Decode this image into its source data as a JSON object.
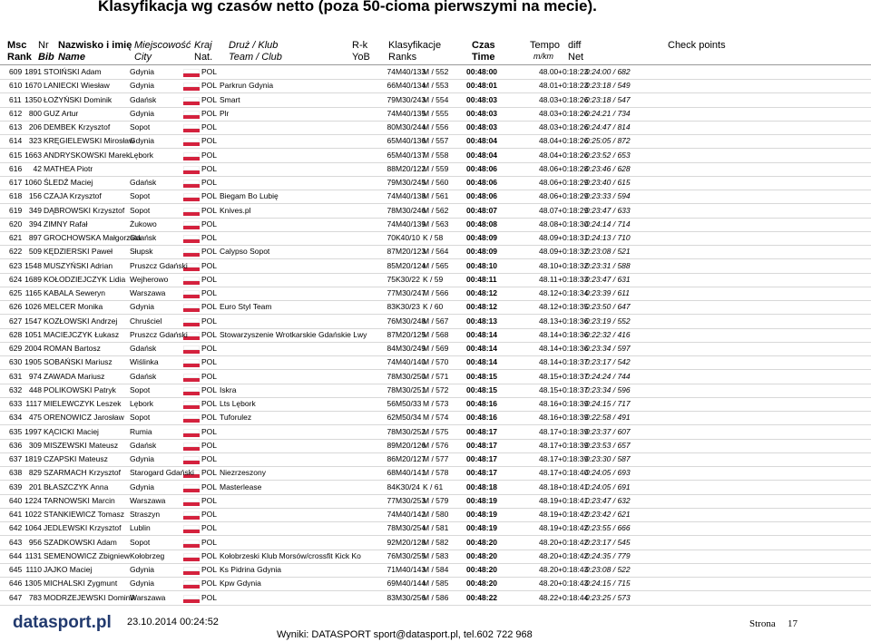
{
  "header": {
    "title": "Klasyfikacja wg czasów netto (poza 50-cioma pierwszymi na mecie)."
  },
  "table": {
    "columns": [
      [
        "Msc",
        "Rank"
      ],
      [
        "Nr",
        "Bib"
      ],
      [
        "Nazwisko i imię",
        "Name"
      ],
      [
        "Miejscowość",
        "City"
      ],
      [
        "Kraj",
        "Nat."
      ],
      [
        "Druż / Klub",
        "Team / Club"
      ],
      [
        "R-k",
        "YoB"
      ],
      [
        "Klasyfikacje",
        "Ranks"
      ],
      [
        "Czas",
        "Time"
      ],
      [
        "Tempo",
        "m/km"
      ],
      [
        "diff",
        "Net"
      ],
      [
        "Check points"
      ]
    ],
    "rows": [
      [
        "609",
        "1891",
        "STOIŃSKI Adam",
        "Gdynia",
        "POL",
        "",
        "74",
        "M40/133",
        "M / 552",
        "00:48:00",
        "48.00",
        "+0:18:23",
        "0:24:00 / 682"
      ],
      [
        "610",
        "1670",
        "LANIECKI Wiesław",
        "Gdynia",
        "POL",
        "Parkrun Gdynia",
        "66",
        "M40/134",
        "M / 553",
        "00:48:01",
        "48.01",
        "+0:18:23",
        "0:23:18 / 549"
      ],
      [
        "611",
        "1350",
        "ŁOŻYŃSKI Dominik",
        "Gdańsk",
        "POL",
        "Smart",
        "79",
        "M30/243",
        "M / 554",
        "00:48:03",
        "48.03",
        "+0:18:26",
        "0:23:18 / 547"
      ],
      [
        "612",
        "800",
        "GUZ Artur",
        "Gdynia",
        "POL",
        "Plr",
        "74",
        "M40/135",
        "M / 555",
        "00:48:03",
        "48.03",
        "+0:18:26",
        "0:24:21 / 734"
      ],
      [
        "613",
        "206",
        "DEMBEK Krzysztof",
        "Sopot",
        "POL",
        "",
        "80",
        "M30/244",
        "M / 556",
        "00:48:03",
        "48.03",
        "+0:18:26",
        "0:24:47 / 814"
      ],
      [
        "614",
        "323",
        "KRĘGIELEWSKI Mirosław",
        "Gdynia",
        "POL",
        "",
        "65",
        "M40/136",
        "M / 557",
        "00:48:04",
        "48.04",
        "+0:18:26",
        "0:25:05 / 872"
      ],
      [
        "615",
        "1663",
        "ANDRYSKOWSKI Marek",
        "Lębork",
        "POL",
        "",
        "65",
        "M40/137",
        "M / 558",
        "00:48:04",
        "48.04",
        "+0:18:26",
        "0:23:52 / 653"
      ],
      [
        "616",
        "42",
        "MATHEA Piotr",
        "",
        "POL",
        "",
        "88",
        "M20/122",
        "M / 559",
        "00:48:06",
        "48.06",
        "+0:18:28",
        "0:23:46 / 628"
      ],
      [
        "617",
        "1060",
        "ŚLEDŹ Maciej",
        "Gdańsk",
        "POL",
        "",
        "79",
        "M30/245",
        "M / 560",
        "00:48:06",
        "48.06",
        "+0:18:29",
        "0:23:40 / 615"
      ],
      [
        "618",
        "156",
        "CZAJA Krzysztof",
        "Sopot",
        "POL",
        "Biegam Bo Lubię",
        "74",
        "M40/138",
        "M / 561",
        "00:48:06",
        "48.06",
        "+0:18:29",
        "0:23:33 / 594"
      ],
      [
        "619",
        "349",
        "DĄBROWSKI Krzysztof",
        "Sopot",
        "POL",
        "Knives.pl",
        "78",
        "M30/246",
        "M / 562",
        "00:48:07",
        "48.07",
        "+0:18:29",
        "0:23:47 / 633"
      ],
      [
        "620",
        "394",
        "ZIMNY Rafał",
        "Żukowo",
        "POL",
        "",
        "74",
        "M40/139",
        "M / 563",
        "00:48:08",
        "48.08",
        "+0:18:30",
        "0:24:14 / 714"
      ],
      [
        "621",
        "897",
        "GROCHOWSKA Małgorzata",
        "Gdańsk",
        "POL",
        "",
        "70",
        "K40/10",
        "K / 58",
        "00:48:09",
        "48.09",
        "+0:18:31",
        "0:24:13 / 710"
      ],
      [
        "622",
        "509",
        "KĘDZIERSKI Paweł",
        "Słupsk",
        "POL",
        "Calypso Sopot",
        "87",
        "M20/123",
        "M / 564",
        "00:48:09",
        "48.09",
        "+0:18:32",
        "0:23:08 / 521"
      ],
      [
        "623",
        "1548",
        "MUSZYŃSKI Adrian",
        "Pruszcz Gdański",
        "POL",
        "",
        "85",
        "M20/124",
        "M / 565",
        "00:48:10",
        "48.10",
        "+0:18:32",
        "0:23:31 / 588"
      ],
      [
        "624",
        "1689",
        "KOŁODZIEJCZYK Lidia",
        "Wejherowo",
        "POL",
        "",
        "75",
        "K30/22",
        "K / 59",
        "00:48:11",
        "48.11",
        "+0:18:33",
        "0:23:47 / 631"
      ],
      [
        "625",
        "1165",
        "KABALA Seweryn",
        "Warszawa",
        "POL",
        "",
        "77",
        "M30/247",
        "M / 566",
        "00:48:12",
        "48.12",
        "+0:18:34",
        "0:23:39 / 611"
      ],
      [
        "626",
        "1026",
        "MELCER Monika",
        "Gdynia",
        "POL",
        "Euro Styl Team",
        "83",
        "K30/23",
        "K / 60",
        "00:48:12",
        "48.12",
        "+0:18:35",
        "0:23:50 / 647"
      ],
      [
        "627",
        "1547",
        "KOZŁOWSKI Andrzej",
        "Chruściel",
        "POL",
        "",
        "76",
        "M30/248",
        "M / 567",
        "00:48:13",
        "48.13",
        "+0:18:36",
        "0:23:19 / 552"
      ],
      [
        "628",
        "1051",
        "MACIEJCZYK Łukasz",
        "Pruszcz Gdański",
        "POL",
        "Stowarzyszenie Wrotkarskie Gdańskie Lwy",
        "87",
        "M20/125",
        "M / 568",
        "00:48:14",
        "48.14",
        "+0:18:36",
        "0:22:32 / 416"
      ],
      [
        "629",
        "2004",
        "ROMAN Bartosz",
        "Gdańsk",
        "POL",
        "",
        "84",
        "M30/249",
        "M / 569",
        "00:48:14",
        "48.14",
        "+0:18:36",
        "0:23:34 / 597"
      ],
      [
        "630",
        "1905",
        "SOBAŃSKI Mariusz",
        "Wiślinka",
        "POL",
        "",
        "74",
        "M40/140",
        "M / 570",
        "00:48:14",
        "48.14",
        "+0:18:37",
        "0:23:17 / 542"
      ],
      [
        "631",
        "974",
        "ZAWADA Mariusz",
        "Gdańsk",
        "POL",
        "",
        "78",
        "M30/250",
        "M / 571",
        "00:48:15",
        "48.15",
        "+0:18:37",
        "0:24:24 / 744"
      ],
      [
        "632",
        "448",
        "POLIKOWSKI Patryk",
        "Sopot",
        "POL",
        "Iskra",
        "78",
        "M30/251",
        "M / 572",
        "00:48:15",
        "48.15",
        "+0:18:37",
        "0:23:34 / 596"
      ],
      [
        "633",
        "1117",
        "MIELEWCZYK Leszek",
        "Lębork",
        "POL",
        "Lts Lębork",
        "56",
        "M50/33",
        "M / 573",
        "00:48:16",
        "48.16",
        "+0:18:39",
        "0:24:15 / 717"
      ],
      [
        "634",
        "475",
        "ORENOWICZ Jarosław",
        "Sopot",
        "POL",
        "Tuforulez",
        "62",
        "M50/34",
        "M / 574",
        "00:48:16",
        "48.16",
        "+0:18:39",
        "0:22:58 / 491"
      ],
      [
        "635",
        "1997",
        "KĄCICKI Maciej",
        "Rumia",
        "POL",
        "",
        "78",
        "M30/252",
        "M / 575",
        "00:48:17",
        "48.17",
        "+0:18:39",
        "0:23:37 / 607"
      ],
      [
        "636",
        "309",
        "MISZEWSKI Mateusz",
        "Gdańsk",
        "POL",
        "",
        "89",
        "M20/126",
        "M / 576",
        "00:48:17",
        "48.17",
        "+0:18:39",
        "0:23:53 / 657"
      ],
      [
        "637",
        "1819",
        "CZAPSKI Mateusz",
        "Gdynia",
        "POL",
        "",
        "86",
        "M20/127",
        "M / 577",
        "00:48:17",
        "48.17",
        "+0:18:39",
        "0:23:30 / 587"
      ],
      [
        "638",
        "829",
        "SZARMACH Krzysztof",
        "Starogard Gdański",
        "POL",
        "Niezrzeszony",
        "68",
        "M40/141",
        "M / 578",
        "00:48:17",
        "48.17",
        "+0:18:40",
        "0:24:05 / 693"
      ],
      [
        "639",
        "201",
        "BŁASZCZYK Anna",
        "Gdynia",
        "POL",
        "Masterlease",
        "84",
        "K30/24",
        "K / 61",
        "00:48:18",
        "48.18",
        "+0:18:41",
        "0:24:05 / 691"
      ],
      [
        "640",
        "1224",
        "TARNOWSKI Marcin",
        "Warszawa",
        "POL",
        "",
        "77",
        "M30/253",
        "M / 579",
        "00:48:19",
        "48.19",
        "+0:18:41",
        "0:23:47 / 632"
      ],
      [
        "641",
        "1022",
        "STANKIEWICZ Tomasz",
        "Straszyn",
        "POL",
        "",
        "74",
        "M40/142",
        "M / 580",
        "00:48:19",
        "48.19",
        "+0:18:42",
        "0:23:42 / 621"
      ],
      [
        "642",
        "1064",
        "JEDLEWSKI Krzysztof",
        "Lublin",
        "POL",
        "",
        "78",
        "M30/254",
        "M / 581",
        "00:48:19",
        "48.19",
        "+0:18:42",
        "0:23:55 / 666"
      ],
      [
        "643",
        "956",
        "SZADKOWSKI Adam",
        "Sopot",
        "POL",
        "",
        "92",
        "M20/128",
        "M / 582",
        "00:48:20",
        "48.20",
        "+0:18:42",
        "0:23:17 / 545"
      ],
      [
        "644",
        "1131",
        "SEMENOWICZ Zbigniew",
        "Kołobrzeg",
        "POL",
        "Kołobrzeski Klub Morsów/crossfit Kick Ko",
        "76",
        "M30/255",
        "M / 583",
        "00:48:20",
        "48.20",
        "+0:18:42",
        "0:24:35 / 779"
      ],
      [
        "645",
        "1110",
        "JAJKO Maciej",
        "Gdynia",
        "POL",
        "Ks Pidrina Gdynia",
        "71",
        "M40/143",
        "M / 584",
        "00:48:20",
        "48.20",
        "+0:18:43",
        "0:23:08 / 522"
      ],
      [
        "646",
        "1305",
        "MICHALSKI Zygmunt",
        "Gdynia",
        "POL",
        "Kpw Gdynia",
        "69",
        "M40/144",
        "M / 585",
        "00:48:20",
        "48.20",
        "+0:18:43",
        "0:24:15 / 715"
      ],
      [
        "647",
        "783",
        "MODRZEJEWSKI Dominik",
        "Warszawa",
        "POL",
        "",
        "83",
        "M30/256",
        "M / 586",
        "00:48:22",
        "48.22",
        "+0:18:44",
        "0:23:25 / 573"
      ]
    ]
  },
  "footer": {
    "logo": "datasport.pl",
    "timestamp": "23.10.2014 00:24:52",
    "contact": "Wyniki: DATASPORT sport@datasport.pl, tel.602 722 968",
    "page_label": "Strona",
    "page_number": "17"
  }
}
